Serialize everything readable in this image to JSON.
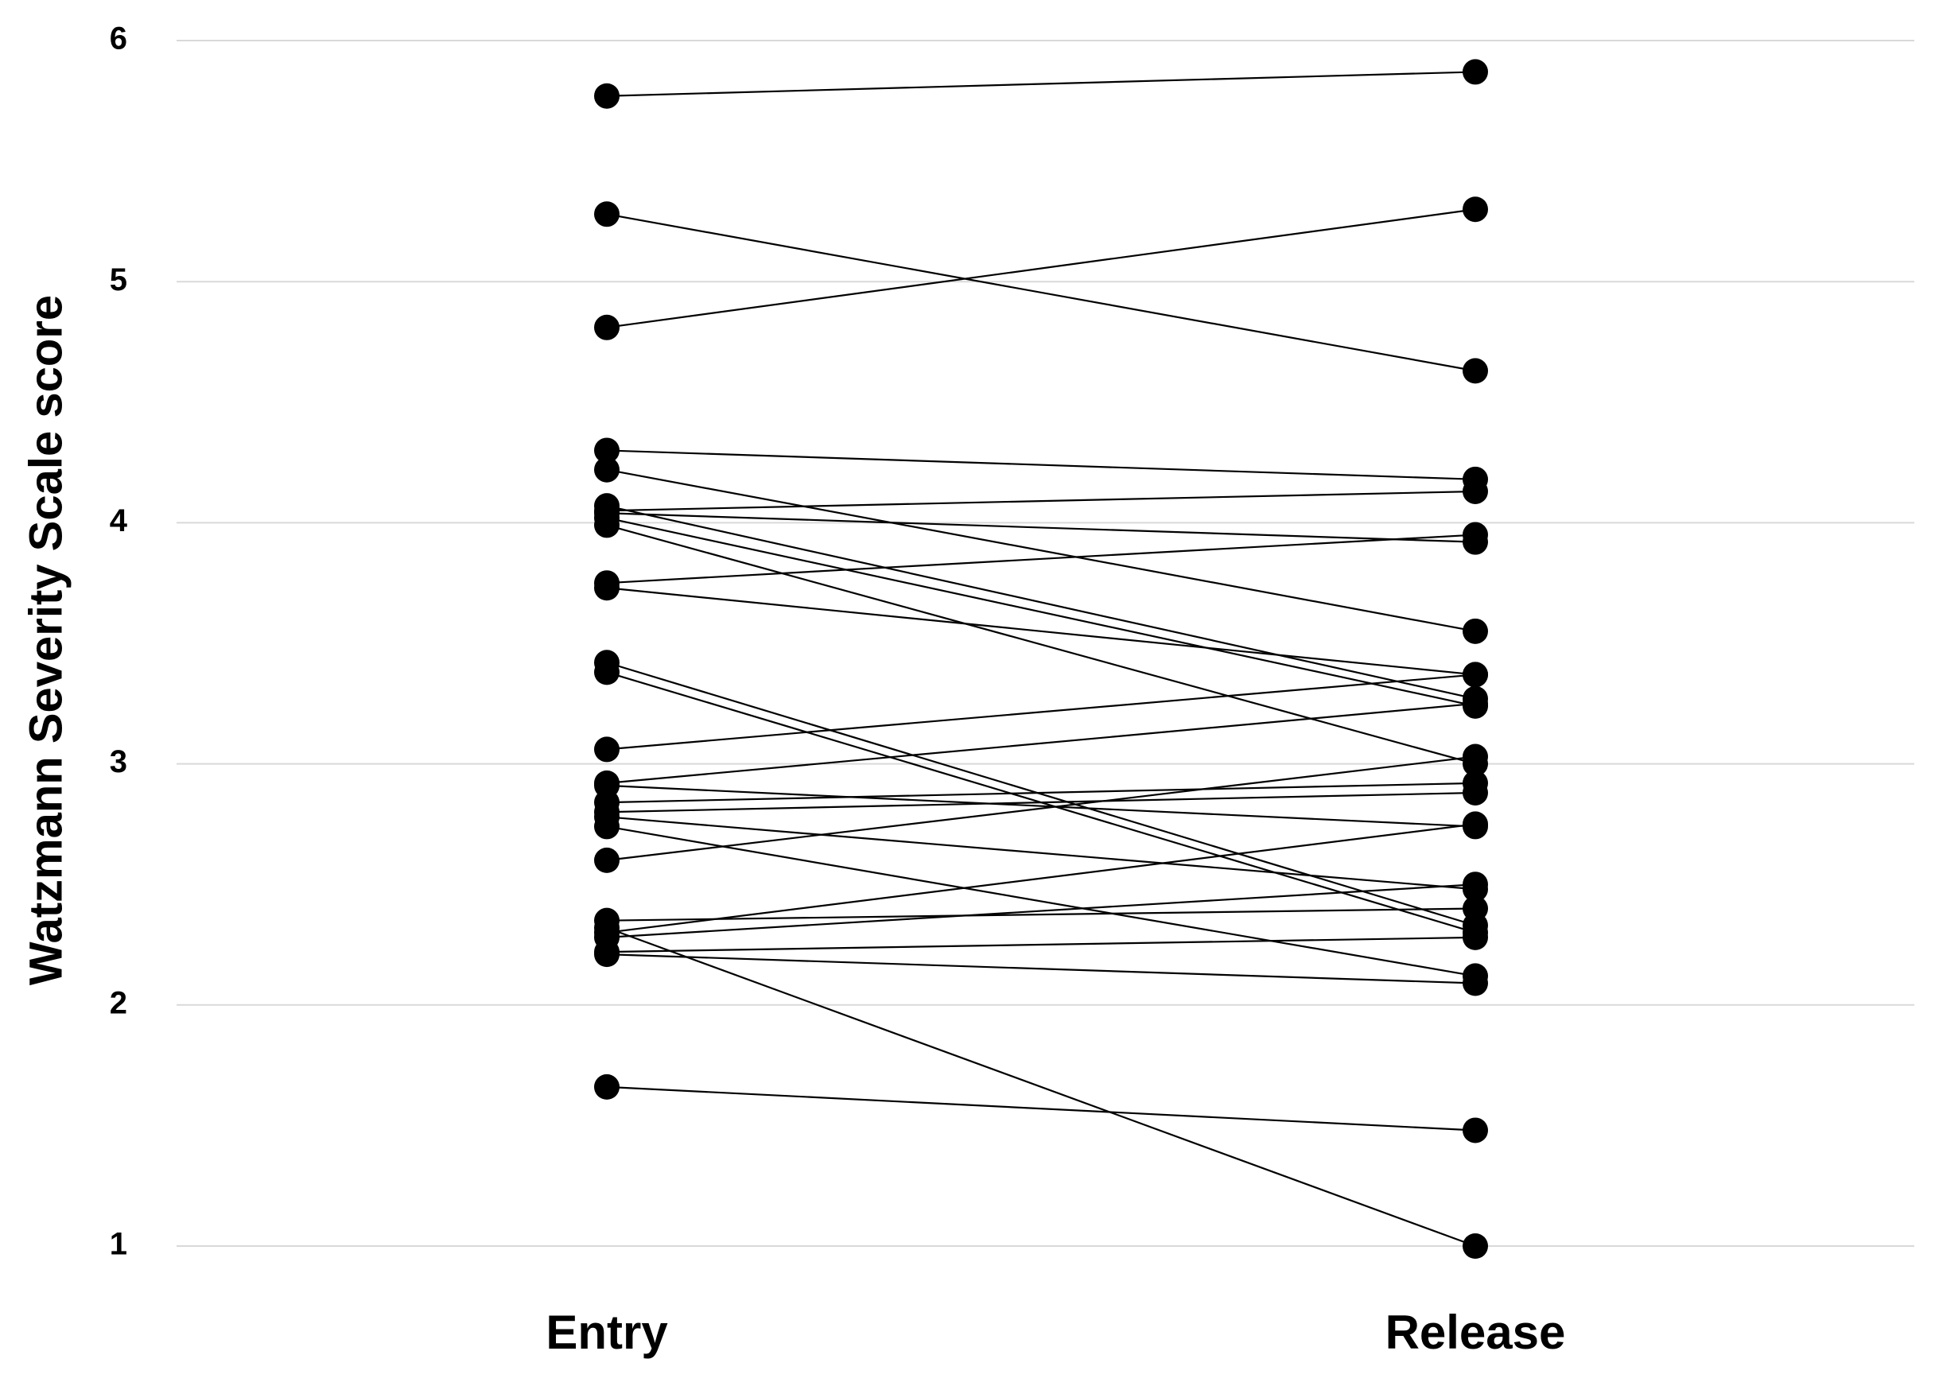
{
  "chart_data": {
    "type": "line",
    "y_label": "Watzmann Severity Scale score",
    "categories": [
      "Entry",
      "Release"
    ],
    "color": "#000000",
    "ylim": [
      1,
      6
    ],
    "yticks": [
      1,
      2,
      3,
      4,
      5,
      6
    ],
    "grid": true,
    "series": [
      {
        "values": [
          5.77,
          5.87
        ]
      },
      {
        "values": [
          5.28,
          4.63
        ]
      },
      {
        "values": [
          4.81,
          5.3
        ]
      },
      {
        "values": [
          4.3,
          4.18
        ]
      },
      {
        "values": [
          4.22,
          3.55
        ]
      },
      {
        "values": [
          4.05,
          4.13
        ]
      },
      {
        "values": [
          4.07,
          3.27
        ]
      },
      {
        "values": [
          4.02,
          3.24
        ]
      },
      {
        "values": [
          4.04,
          3.92
        ]
      },
      {
        "values": [
          3.99,
          3.0
        ]
      },
      {
        "values": [
          3.75,
          3.95
        ]
      },
      {
        "values": [
          3.73,
          3.37
        ]
      },
      {
        "values": [
          3.42,
          2.33
        ]
      },
      {
        "values": [
          3.38,
          2.3
        ]
      },
      {
        "values": [
          3.06,
          3.37
        ]
      },
      {
        "values": [
          2.92,
          3.25
        ]
      },
      {
        "values": [
          2.91,
          2.74
        ]
      },
      {
        "values": [
          2.84,
          2.92
        ]
      },
      {
        "values": [
          2.8,
          2.88
        ]
      },
      {
        "values": [
          2.78,
          2.48
        ]
      },
      {
        "values": [
          2.74,
          2.12
        ]
      },
      {
        "values": [
          2.6,
          3.03
        ]
      },
      {
        "values": [
          2.35,
          2.4
        ]
      },
      {
        "values": [
          2.3,
          2.75
        ]
      },
      {
        "values": [
          2.28,
          2.5
        ]
      },
      {
        "values": [
          2.21,
          2.09
        ]
      },
      {
        "values": [
          2.22,
          2.28
        ]
      },
      {
        "values": [
          2.32,
          1.0
        ]
      },
      {
        "values": [
          1.66,
          1.48
        ]
      }
    ]
  }
}
